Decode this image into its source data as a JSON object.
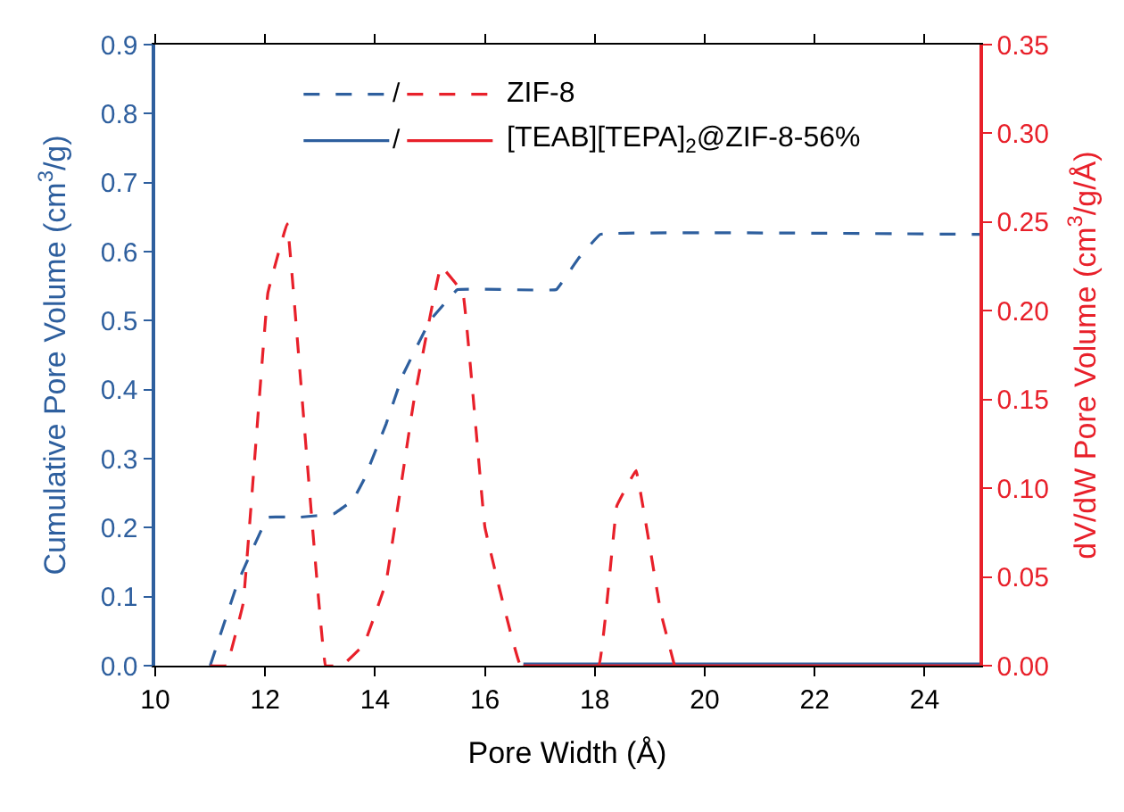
{
  "chart_data": {
    "type": "line",
    "xlabel": "Pore Width (Å)",
    "ylabel": "Cumulative Pore Volume (cm$^{3}$/g)",
    "y2label": "dV/dW Pore Volume (cm$^{3}$/g/Å)",
    "xlim": [
      10,
      25
    ],
    "xticks": [
      10,
      12,
      14,
      16,
      18,
      20,
      22,
      24
    ],
    "ylim": [
      0,
      0.9
    ],
    "yticks": [
      {
        "value": 0,
        "label": "0.0"
      },
      0.1,
      0.2,
      0.3,
      0.4,
      0.5,
      0.6,
      0.7,
      0.8,
      0.9
    ],
    "y2lim": [
      0,
      0.35
    ],
    "y2ticks": [
      {
        "value": 0,
        "label": "0.00"
      },
      {
        "value": 0.05,
        "label": "0.05"
      },
      {
        "value": 0.1,
        "label": "0.10"
      },
      {
        "value": 0.15,
        "label": "0.15"
      },
      {
        "value": 0.2,
        "label": "0.20"
      },
      {
        "value": 0.25,
        "label": "0.25"
      },
      {
        "value": 0.3,
        "label": "0.30"
      },
      {
        "value": 0.35,
        "label": "0.35"
      }
    ],
    "legend": "top left",
    "marker": "none",
    "annotations": [
      "/",
      "/"
    ],
    "series": [
      {
        "color": "#2e5f9e",
        "line_style": "dashed",
        "x": [
          11.0,
          11.5,
          12.05,
          12.6,
          13.25,
          13.6,
          13.8,
          14.2,
          14.5,
          15.0,
          15.5,
          17.3,
          17.7,
          18.1,
          25
        ],
        "values": [
          0,
          0.12,
          0.215,
          0.215,
          0.22,
          0.24,
          0.27,
          0.35,
          0.42,
          0.5,
          0.545,
          0.545,
          0.59,
          0.625,
          0.625
        ]
      },
      {
        "name": "ZIF-8",
        "color": "#e8202a",
        "line_style": "dashed",
        "axis": "y2",
        "x": [
          11.0,
          11.3,
          11.6,
          12.05,
          12.4,
          13.1,
          13.4,
          13.8,
          14.2,
          14.7,
          15.2,
          15.6,
          16.0,
          16.65,
          18.07,
          18.4,
          18.75,
          19.2,
          19.45
        ],
        "values": [
          0,
          0,
          0.035,
          0.21,
          0.249,
          0,
          0,
          0.012,
          0.047,
          0.148,
          0.225,
          0.21,
          0.078,
          0,
          0,
          0.09,
          0.11,
          0.03,
          0
        ]
      },
      {
        "color": "#2e5f9e",
        "line_style": "solid",
        "x": [
          16.7,
          25
        ],
        "values": [
          0,
          0
        ]
      },
      {
        "name": "[TEAB][TEPA]$_{2}$@ZIF-8-56%",
        "color": "#e8202a",
        "line_style": "solid",
        "axis": "y2",
        "x": [
          16.7,
          25
        ],
        "values": [
          0,
          0
        ]
      }
    ]
  }
}
